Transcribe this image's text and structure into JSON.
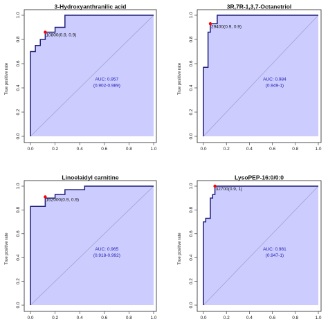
{
  "chart_data": [
    {
      "type": "line",
      "title": "3-Hydroxyanthranilic acid",
      "ylabel": "True positive rate",
      "xlim": [
        0,
        1
      ],
      "ylim": [
        0,
        1
      ],
      "x_ticks": [
        "0.0",
        "0.2",
        "0.4",
        "0.6",
        "0.8",
        "1.0"
      ],
      "y_ticks": [
        "0.0",
        "0.2",
        "0.4",
        "0.6",
        "0.8",
        "1.0"
      ],
      "series": [
        {
          "fpr": [
            0,
            0,
            0.04,
            0.04,
            0.08,
            0.08,
            0.12,
            0.12,
            0.2,
            0.2,
            0.28,
            0.28,
            1.0
          ],
          "tpr": [
            0,
            0.7,
            0.7,
            0.75,
            0.75,
            0.8,
            0.8,
            0.86,
            0.86,
            0.9,
            0.9,
            1.0,
            1.0
          ]
        }
      ],
      "auc_text": "AUC: 0.957",
      "ci_text": "(0.902-0.989)",
      "threshold": {
        "label": "10800(0.9, 0.9)",
        "fpr": 0.12,
        "tpr": 0.86
      },
      "colors": {
        "curve": "#1f1f7a",
        "fill": "#ccccff",
        "point": "#ff0000",
        "diagonal": "#9aa0c8"
      }
    },
    {
      "type": "line",
      "title": "3R,7R-1,3,7-Octanetriol",
      "ylabel": "True positive rate",
      "xlim": [
        0,
        1
      ],
      "ylim": [
        0,
        1
      ],
      "x_ticks": [
        "0.0",
        "0.2",
        "0.4",
        "0.6",
        "0.8",
        "1.0"
      ],
      "y_ticks": [
        "0.0",
        "0.2",
        "0.4",
        "0.6",
        "0.8",
        "1.0"
      ],
      "series": [
        {
          "fpr": [
            0,
            0,
            0.04,
            0.04,
            0.06,
            0.06,
            0.12,
            0.12,
            1.0
          ],
          "tpr": [
            0,
            0.57,
            0.57,
            0.86,
            0.86,
            0.93,
            0.93,
            1.0,
            1.0
          ]
        }
      ],
      "auc_text": "AUC: 0.984",
      "ci_text": "(0.949-1)",
      "threshold": {
        "label": "29400(0.9, 0.9)",
        "fpr": 0.06,
        "tpr": 0.93
      },
      "colors": {
        "curve": "#1f1f7a",
        "fill": "#ccccff",
        "point": "#ff0000",
        "diagonal": "#9aa0c8"
      }
    },
    {
      "type": "line",
      "title": "Linoelaidyl carnitine",
      "ylabel": "True positive rate",
      "xlim": [
        0,
        1
      ],
      "ylim": [
        0,
        1
      ],
      "x_ticks": [
        "0.0",
        "0.2",
        "0.4",
        "0.6",
        "0.8",
        "1.0"
      ],
      "y_ticks": [
        "0.0",
        "0.2",
        "0.4",
        "0.6",
        "0.8",
        "1.0"
      ],
      "series": [
        {
          "fpr": [
            0,
            0,
            0.12,
            0.12,
            0.2,
            0.2,
            0.28,
            0.28,
            0.44,
            0.44,
            1.0
          ],
          "tpr": [
            0,
            0.83,
            0.83,
            0.9,
            0.9,
            0.93,
            0.93,
            0.97,
            0.97,
            1.0,
            1.0
          ]
        }
      ],
      "auc_text": "AUC: 0.965",
      "ci_text": "(0.918-0.992)",
      "threshold": {
        "label": "162000(0.9, 0.9)",
        "fpr": 0.12,
        "tpr": 0.91
      },
      "colors": {
        "curve": "#1f1f7a",
        "fill": "#ccccff",
        "point": "#ff0000",
        "diagonal": "#9aa0c8"
      }
    },
    {
      "type": "line",
      "title": "LysoPEP-16:0/0:0",
      "ylabel": "True positive rate",
      "xlim": [
        0,
        1
      ],
      "ylim": [
        0,
        1
      ],
      "x_ticks": [
        "0.0",
        "0.2",
        "0.4",
        "0.6",
        "0.8",
        "1.0"
      ],
      "y_ticks": [
        "0.0",
        "0.2",
        "0.4",
        "0.6",
        "0.8",
        "1.0"
      ],
      "series": [
        {
          "fpr": [
            0,
            0,
            0.02,
            0.02,
            0.06,
            0.06,
            0.08,
            0.08,
            0.1,
            0.1,
            1.0
          ],
          "tpr": [
            0,
            0.7,
            0.7,
            0.73,
            0.73,
            0.9,
            0.9,
            0.93,
            0.93,
            1.0,
            1.0
          ]
        }
      ],
      "auc_text": "AUC: 0.981",
      "ci_text": "(0.947-1)",
      "threshold": {
        "label": "32700(0.9, 1)",
        "fpr": 0.1,
        "tpr": 1.0
      },
      "colors": {
        "curve": "#1f1f7a",
        "fill": "#ccccff",
        "point": "#ff0000",
        "diagonal": "#9aa0c8"
      }
    }
  ]
}
